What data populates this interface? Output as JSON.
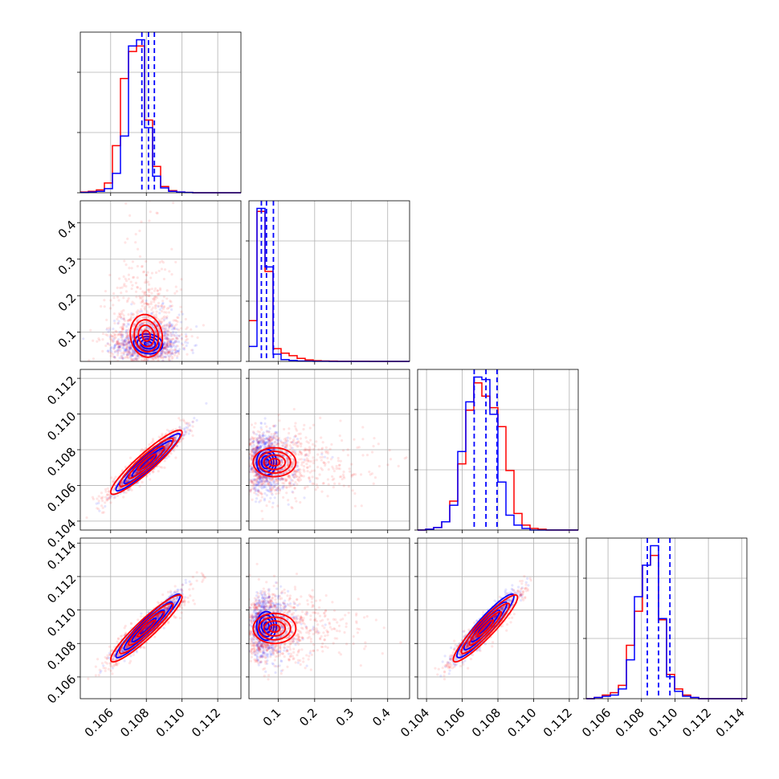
{
  "chart_data": {
    "type": "corner",
    "colors": {
      "run_a": "#0000ff",
      "run_b": "#ff0000",
      "grid": "#b0b0b0"
    },
    "parameters": [
      {
        "range": [
          0.1043,
          0.1133
        ],
        "ticks": [
          0.106,
          0.108,
          0.11,
          0.112
        ],
        "tick_labels": [
          "0.106",
          "0.108",
          "0.110",
          "0.112"
        ]
      },
      {
        "range": [
          0.02,
          0.46
        ],
        "ticks": [
          0.1,
          0.2,
          0.3,
          0.4
        ],
        "tick_labels": [
          "0.1",
          "0.2",
          "0.3",
          "0.4"
        ]
      },
      {
        "range": [
          0.1035,
          0.1125
        ],
        "ticks": [
          0.104,
          0.106,
          0.108,
          0.11,
          0.112
        ],
        "tick_labels": [
          "0.104",
          "0.106",
          "0.108",
          "0.110",
          "0.112"
        ]
      },
      {
        "range": [
          0.1047,
          0.1143
        ],
        "ticks": [
          0.106,
          0.108,
          0.11,
          0.112,
          0.114
        ],
        "tick_labels": [
          "0.106",
          "0.108",
          "0.110",
          "0.112",
          "0.114"
        ]
      }
    ],
    "diagonal": [
      {
        "bins": [
          0.1043,
          0.1133,
          20
        ],
        "series": [
          {
            "key": "run_a",
            "values": [
              0.5,
              1,
              2,
              6,
              28,
              82,
              212,
              221,
              94,
              24,
              7,
              2,
              1,
              0.5,
              0,
              0,
              0,
              0,
              0,
              0
            ]
          },
          {
            "key": "run_b",
            "values": [
              1,
              2,
              4,
              14,
              68,
              165,
              204,
              212,
              105,
              38,
              9,
              3,
              1,
              0.5,
              0,
              0,
              0,
              0,
              0,
              0
            ]
          }
        ],
        "quantiles": [
          0.10775,
          0.10812,
          0.10845
        ]
      },
      {
        "bins": [
          0.02,
          0.46,
          20
        ],
        "series": [
          {
            "key": "run_a",
            "values": [
              100,
              1020,
              630,
              48,
              12,
              6,
              3,
              2,
              1,
              0.5,
              0,
              0,
              0,
              0,
              0,
              0,
              0,
              0,
              0,
              0
            ]
          },
          {
            "key": "run_b",
            "values": [
              272,
              1000,
              600,
              85,
              55,
              38,
              20,
              10,
              5,
              3,
              2,
              1,
              1,
              0.5,
              0.5,
              0,
              0,
              0,
              0,
              0
            ]
          }
        ],
        "quantiles": [
          0.054,
          0.068,
          0.087
        ]
      },
      {
        "bins": [
          0.1035,
          0.1125,
          20
        ],
        "series": [
          {
            "key": "run_a",
            "values": [
              0,
              1,
              3,
              10,
              30,
              95,
              155,
              185,
              182,
              140,
              58,
              18,
              6,
              2,
              0,
              0,
              0,
              0,
              0,
              0
            ]
          },
          {
            "key": "run_b",
            "values": [
              0,
              1,
              3,
              10,
              35,
              80,
              145,
              178,
              162,
              148,
              125,
              72,
              20,
              6,
              2,
              1,
              0,
              0,
              0,
              0
            ]
          }
        ],
        "quantiles": [
          0.10667,
          0.10733,
          0.10795
        ]
      },
      {
        "bins": [
          0.1047,
          0.1143,
          20
        ],
        "series": [
          {
            "key": "run_a",
            "values": [
              0,
              1,
              2,
              3,
              8,
              32,
              84,
              110,
              126,
              66,
              18,
              6,
              2,
              1,
              0,
              0,
              0,
              0,
              0,
              0
            ]
          },
          {
            "key": "run_b",
            "values": [
              0,
              1,
              3,
              5,
              11,
              44,
              72,
              110,
              118,
              65,
              20,
              8,
              3,
              1,
              0,
              0,
              0,
              0,
              0,
              0
            ]
          }
        ],
        "quantiles": [
          0.10835,
          0.10902,
          0.1097
        ]
      }
    ],
    "pairs": [
      {
        "row": 1,
        "col": 0,
        "series": [
          {
            "key": "run_a",
            "mean": [
              0.1081,
              0.068
            ],
            "sd": [
              0.0009,
              0.03
            ],
            "rho": -0.1,
            "n": 800
          },
          {
            "key": "run_b",
            "mean": [
              0.108,
              0.09
            ],
            "sd": [
              0.001,
              0.065
            ],
            "rho": -0.1,
            "n": 1000
          }
        ]
      },
      {
        "row": 2,
        "col": 0,
        "series": [
          {
            "key": "run_a",
            "mean": [
              0.1081,
              0.1073
            ],
            "sd": [
              0.0009,
              0.0008
            ],
            "rho": 0.95,
            "n": 800
          },
          {
            "key": "run_b",
            "mean": [
              0.108,
              0.1073
            ],
            "sd": [
              0.001,
              0.0009
            ],
            "rho": 0.93,
            "n": 1000
          }
        ]
      },
      {
        "row": 2,
        "col": 1,
        "series": [
          {
            "key": "run_a",
            "mean": [
              0.068,
              0.1073
            ],
            "sd": [
              0.03,
              0.0008
            ],
            "rho": 0.0,
            "n": 800
          },
          {
            "key": "run_b",
            "mean": [
              0.09,
              0.1073
            ],
            "sd": [
              0.065,
              0.0009
            ],
            "rho": 0.0,
            "n": 1000
          }
        ]
      },
      {
        "row": 3,
        "col": 0,
        "series": [
          {
            "key": "run_a",
            "mean": [
              0.1081,
              0.10905
            ],
            "sd": [
              0.0009,
              0.00095
            ],
            "rho": 0.95,
            "n": 800
          },
          {
            "key": "run_b",
            "mean": [
              0.108,
              0.1089
            ],
            "sd": [
              0.001,
              0.001
            ],
            "rho": 0.93,
            "n": 1000
          }
        ]
      },
      {
        "row": 3,
        "col": 1,
        "series": [
          {
            "key": "run_a",
            "mean": [
              0.068,
              0.10905
            ],
            "sd": [
              0.03,
              0.00095
            ],
            "rho": 0.0,
            "n": 800
          },
          {
            "key": "run_b",
            "mean": [
              0.09,
              0.1089
            ],
            "sd": [
              0.065,
              0.001
            ],
            "rho": 0.0,
            "n": 1000
          }
        ]
      },
      {
        "row": 3,
        "col": 2,
        "series": [
          {
            "key": "run_a",
            "mean": [
              0.1073,
              0.10905
            ],
            "sd": [
              0.0008,
              0.00095
            ],
            "rho": 0.93,
            "n": 800
          },
          {
            "key": "run_b",
            "mean": [
              0.1073,
              0.1089
            ],
            "sd": [
              0.0009,
              0.001
            ],
            "rho": 0.93,
            "n": 1000
          }
        ]
      }
    ],
    "contour_levels_sigma": [
      0.5,
      1.0,
      1.5,
      2.0
    ],
    "grid": true,
    "legend": "none"
  }
}
